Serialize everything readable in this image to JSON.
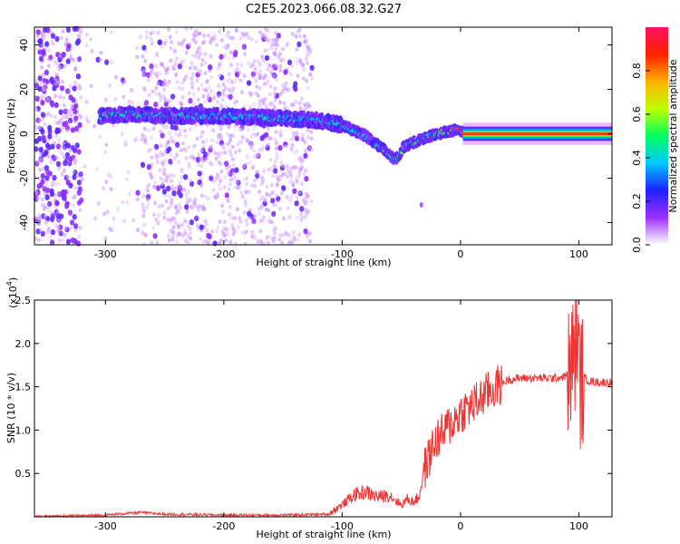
{
  "title": "C2E5.2023.066.08.32.G27",
  "chart_data": [
    {
      "type": "heatmap",
      "xlabel": "Height of straight line (km)",
      "ylabel": "Frequency (Hz)",
      "xlim": [
        -360,
        128
      ],
      "ylim": [
        -50,
        48
      ],
      "xticks": [
        -300,
        -200,
        -100,
        0,
        100
      ],
      "xtick_labels": [
        "-300",
        "-200",
        "-100",
        "0",
        "100"
      ],
      "yticks": [
        40,
        20,
        0,
        -20,
        -40
      ],
      "ytick_labels": [
        "40",
        "20",
        "0",
        "-20",
        "-40"
      ],
      "ridge": {
        "x": [
          -305,
          -280,
          -250,
          -200,
          -150,
          -120,
          -100,
          -80,
          -65,
          -55,
          -48,
          -40,
          -30,
          -20,
          -10,
          -2,
          5,
          20,
          60,
          92,
          98,
          104,
          128
        ],
        "y": [
          8,
          9,
          8,
          8,
          7,
          6,
          4,
          -1,
          -7,
          -12,
          -6,
          -4,
          -2,
          0,
          1,
          2,
          0,
          0,
          0,
          0,
          0,
          0,
          0
        ],
        "amplitude": [
          0.45,
          0.45,
          0.42,
          0.4,
          0.38,
          0.35,
          0.4,
          0.42,
          0.45,
          0.45,
          0.55,
          0.5,
          0.45,
          0.5,
          0.6,
          0.8,
          0.85,
          0.9,
          0.9,
          0.9,
          0.5,
          0.9,
          0.9
        ]
      },
      "grid": false,
      "colorbar": {
        "label": "Normalized spectral amplitude",
        "range": [
          0,
          1
        ],
        "ticks": [
          0.0,
          0.2,
          0.4,
          0.6,
          0.8
        ],
        "tick_labels": [
          "0.0",
          "0.2",
          "0.4",
          "0.6",
          "0.8"
        ],
        "colors": [
          "#ffffff",
          "#9b30ff",
          "#2020ff",
          "#00c8ff",
          "#00ff60",
          "#c0ff00",
          "#ffb000",
          "#ff2000",
          "#ff1060"
        ]
      }
    },
    {
      "type": "line",
      "xlabel": "Height of straight line (km)",
      "ylabel": "SNR (10 * v/v)",
      "scale_note": "(x10",
      "scale_exp": "4",
      "scale_close": ")",
      "xlim": [
        -360,
        128
      ],
      "ylim": [
        0,
        2.5
      ],
      "xticks": [
        -300,
        -200,
        -100,
        0,
        100
      ],
      "xtick_labels": [
        "-300",
        "-200",
        "-100",
        "0",
        "100"
      ],
      "yticks": [
        2.5,
        2.0,
        1.5,
        1.0,
        0.5
      ],
      "ytick_labels": [
        "2.5",
        "2.0",
        "1.5",
        "1.0",
        "0.5"
      ],
      "color": "#ee3333",
      "series": [
        {
          "x": [
            -360,
            -330,
            -300,
            -270,
            -250,
            -200,
            -150,
            -110,
            -100,
            -90,
            -80,
            -70,
            -60,
            -50,
            -45,
            -40,
            -35,
            -30,
            -25,
            -20,
            -15,
            -10,
            -5,
            0,
            5,
            10,
            20,
            30,
            40,
            50,
            60,
            70,
            80,
            88,
            92,
            95,
            97,
            99,
            100,
            102,
            105,
            110,
            120,
            128
          ],
          "y": [
            0.0,
            0.01,
            0.02,
            0.05,
            0.03,
            0.02,
            0.02,
            0.03,
            0.12,
            0.22,
            0.25,
            0.2,
            0.22,
            0.12,
            0.18,
            0.15,
            0.2,
            0.55,
            0.75,
            0.9,
            0.95,
            1.05,
            1.12,
            1.2,
            1.25,
            1.28,
            1.4,
            1.5,
            1.58,
            1.6,
            1.6,
            1.6,
            1.6,
            1.62,
            1.65,
            1.8,
            2.0,
            2.2,
            1.6,
            1.55,
            1.6,
            1.56,
            1.55,
            1.55
          ]
        }
      ]
    }
  ]
}
